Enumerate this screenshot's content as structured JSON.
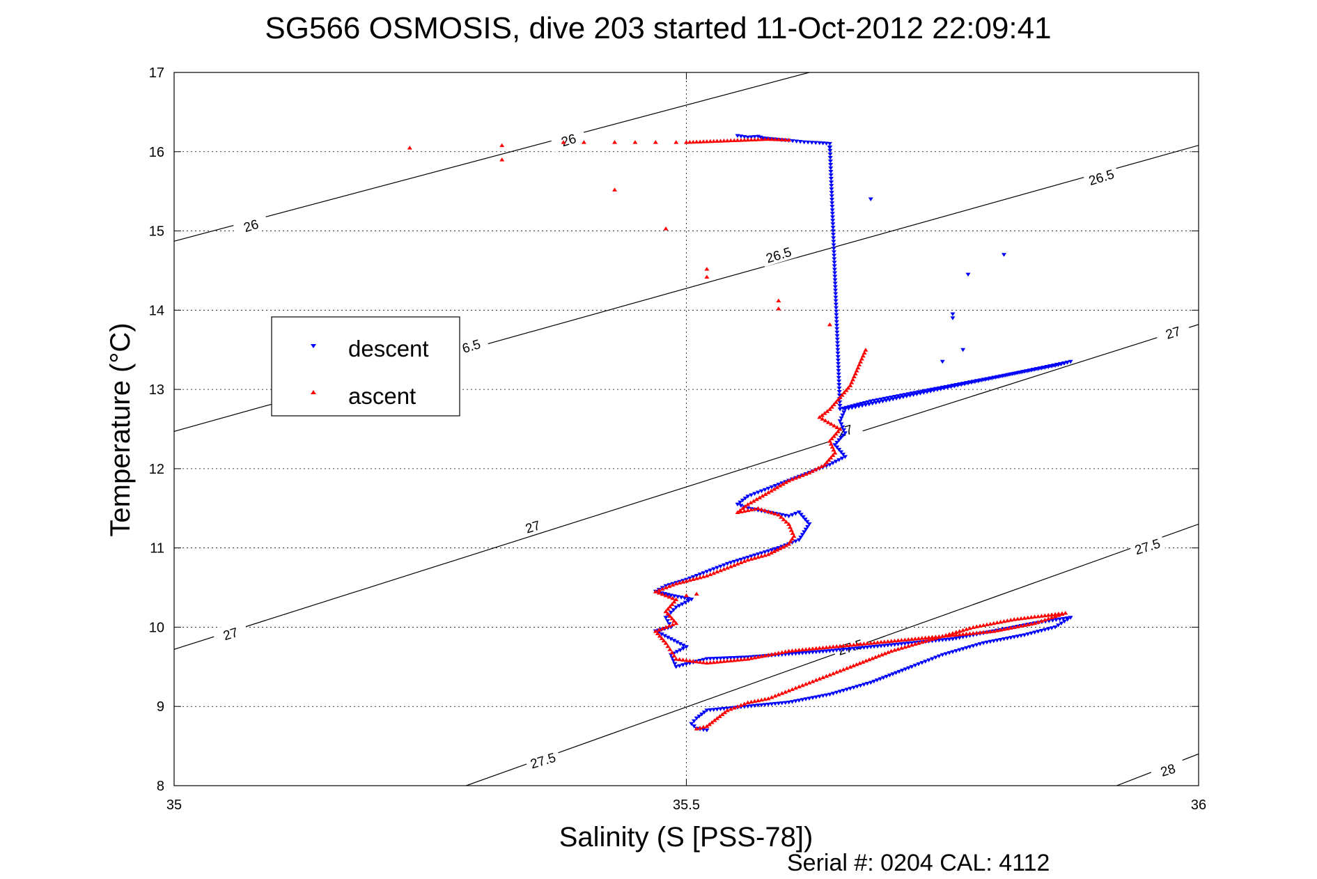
{
  "chart_data": {
    "type": "scatter",
    "title": "SG566 OSMOSIS, dive 203 started 11-Oct-2012 22:09:41",
    "xlabel": "Salinity (S [PSS-78])",
    "ylabel": "Temperature (°C)",
    "xlim": [
      35,
      36
    ],
    "ylim": [
      8,
      17
    ],
    "x_ticks": [
      "35",
      "35.5",
      "36"
    ],
    "y_ticks": [
      "8",
      "9",
      "10",
      "11",
      "12",
      "13",
      "14",
      "15",
      "16",
      "17"
    ],
    "grid": true,
    "legend_position": "left",
    "footer": "Serial #: 0204  CAL: 4112",
    "colors": {
      "descent": "#0000ff",
      "ascent": "#ff0000",
      "contour": "#000000"
    },
    "density_contours": [
      {
        "level": "26",
        "points": [
          [
            35,
            14.87
          ],
          [
            35.62,
            17.0
          ]
        ]
      },
      {
        "level": "26.5",
        "points": [
          [
            35,
            12.47
          ],
          [
            36,
            16.08
          ]
        ]
      },
      {
        "level": "27",
        "points": [
          [
            35,
            9.72
          ],
          [
            36,
            13.82
          ]
        ]
      },
      {
        "level": "27.5",
        "points": [
          [
            35.285,
            8.0
          ],
          [
            36,
            11.3
          ]
        ]
      },
      {
        "level": "28",
        "points": [
          [
            35.92,
            8.0
          ],
          [
            36,
            8.4
          ]
        ]
      }
    ],
    "contour_labels": [
      {
        "text": "26",
        "x": 35.075,
        "y": 15.07
      },
      {
        "text": "26",
        "x": 35.385,
        "y": 16.15
      },
      {
        "text": "26.5",
        "x": 35.59,
        "y": 14.7
      },
      {
        "text": "26.5",
        "x": 35.905,
        "y": 15.68
      },
      {
        "text": "6.5",
        "x": 35.29,
        "y": 13.55
      },
      {
        "text": "27",
        "x": 35.055,
        "y": 9.92
      },
      {
        "text": "27",
        "x": 35.35,
        "y": 11.27
      },
      {
        "text": "27",
        "x": 35.655,
        "y": 12.48
      },
      {
        "text": "27",
        "x": 35.975,
        "y": 13.72
      },
      {
        "text": "27.5",
        "x": 35.36,
        "y": 8.32
      },
      {
        "text": "27.5",
        "x": 35.66,
        "y": 9.75
      },
      {
        "text": "27.5",
        "x": 35.95,
        "y": 11.02
      },
      {
        "text": "28",
        "x": 35.97,
        "y": 8.2
      }
    ],
    "series": [
      {
        "name": "descent",
        "marker": "triangle-down",
        "color": "#0000ff",
        "path": [
          [
            35.55,
            16.2
          ],
          [
            35.56,
            16.18
          ],
          [
            35.57,
            16.19
          ],
          [
            35.575,
            16.17
          ],
          [
            35.6,
            16.14
          ],
          [
            35.615,
            16.12
          ],
          [
            35.63,
            16.11
          ],
          [
            35.64,
            16.1
          ],
          [
            35.65,
            12.75
          ],
          [
            35.665,
            12.8
          ],
          [
            35.68,
            12.85
          ],
          [
            35.7,
            12.9
          ],
          [
            35.72,
            12.95
          ],
          [
            35.74,
            13.0
          ],
          [
            35.76,
            13.05
          ],
          [
            35.78,
            13.1
          ],
          [
            35.8,
            13.15
          ],
          [
            35.82,
            13.2
          ],
          [
            35.84,
            13.25
          ],
          [
            35.86,
            13.3
          ],
          [
            35.875,
            13.35
          ],
          [
            35.655,
            12.75
          ],
          [
            35.65,
            12.6
          ],
          [
            35.655,
            12.45
          ],
          [
            35.645,
            12.3
          ],
          [
            35.655,
            12.15
          ],
          [
            35.64,
            12.05
          ],
          [
            35.62,
            11.95
          ],
          [
            35.6,
            11.85
          ],
          [
            35.58,
            11.75
          ],
          [
            35.56,
            11.65
          ],
          [
            35.55,
            11.55
          ],
          [
            35.56,
            11.5
          ],
          [
            35.58,
            11.45
          ],
          [
            35.6,
            11.4
          ],
          [
            35.61,
            11.45
          ],
          [
            35.62,
            11.3
          ],
          [
            35.615,
            11.2
          ],
          [
            35.61,
            11.1
          ],
          [
            35.59,
            11.0
          ],
          [
            35.57,
            10.92
          ],
          [
            35.54,
            10.8
          ],
          [
            35.52,
            10.7
          ],
          [
            35.5,
            10.6
          ],
          [
            35.48,
            10.52
          ],
          [
            35.47,
            10.45
          ],
          [
            35.485,
            10.4
          ],
          [
            35.505,
            10.35
          ],
          [
            35.49,
            10.25
          ],
          [
            35.48,
            10.12
          ],
          [
            35.485,
            10.0
          ],
          [
            35.47,
            9.95
          ],
          [
            35.485,
            9.85
          ],
          [
            35.5,
            9.75
          ],
          [
            35.485,
            9.65
          ],
          [
            35.49,
            9.5
          ],
          [
            35.52,
            9.6
          ],
          [
            35.56,
            9.62
          ],
          [
            35.6,
            9.66
          ],
          [
            35.64,
            9.7
          ],
          [
            35.68,
            9.75
          ],
          [
            35.72,
            9.8
          ],
          [
            35.76,
            9.85
          ],
          [
            35.8,
            9.95
          ],
          [
            35.84,
            10.05
          ],
          [
            35.875,
            10.12
          ],
          [
            35.86,
            10.0
          ],
          [
            35.83,
            9.9
          ],
          [
            35.79,
            9.8
          ],
          [
            35.75,
            9.65
          ],
          [
            35.72,
            9.5
          ],
          [
            35.68,
            9.3
          ],
          [
            35.64,
            9.15
          ],
          [
            35.6,
            9.05
          ],
          [
            35.52,
            8.95
          ],
          [
            35.51,
            8.85
          ],
          [
            35.505,
            8.78
          ],
          [
            35.51,
            8.72
          ],
          [
            35.52,
            8.7
          ]
        ],
        "outliers": [
          [
            35.68,
            15.4
          ],
          [
            35.64,
            16.05
          ],
          [
            35.81,
            14.7
          ],
          [
            35.775,
            14.45
          ],
          [
            35.76,
            13.95
          ],
          [
            35.77,
            13.5
          ],
          [
            35.75,
            13.35
          ],
          [
            35.76,
            13.9
          ]
        ]
      },
      {
        "name": "ascent",
        "marker": "triangle-up",
        "color": "#ff0000",
        "path": [
          [
            35.51,
            8.72
          ],
          [
            35.52,
            8.75
          ],
          [
            35.53,
            8.85
          ],
          [
            35.54,
            8.95
          ],
          [
            35.56,
            9.05
          ],
          [
            35.58,
            9.1
          ],
          [
            35.6,
            9.2
          ],
          [
            35.63,
            9.35
          ],
          [
            35.66,
            9.5
          ],
          [
            35.7,
            9.7
          ],
          [
            35.74,
            9.85
          ],
          [
            35.78,
            10.0
          ],
          [
            35.82,
            10.1
          ],
          [
            35.87,
            10.18
          ],
          [
            35.84,
            10.05
          ],
          [
            35.8,
            9.95
          ],
          [
            35.76,
            9.9
          ],
          [
            35.72,
            9.85
          ],
          [
            35.68,
            9.8
          ],
          [
            35.64,
            9.75
          ],
          [
            35.6,
            9.7
          ],
          [
            35.56,
            9.6
          ],
          [
            35.52,
            9.55
          ],
          [
            35.49,
            9.6
          ],
          [
            35.48,
            9.8
          ],
          [
            35.47,
            9.95
          ],
          [
            35.49,
            10.05
          ],
          [
            35.48,
            10.2
          ],
          [
            35.49,
            10.35
          ],
          [
            35.47,
            10.45
          ],
          [
            35.49,
            10.55
          ],
          [
            35.52,
            10.65
          ],
          [
            35.54,
            10.75
          ],
          [
            35.56,
            10.85
          ],
          [
            35.58,
            10.92
          ],
          [
            35.6,
            11.05
          ],
          [
            35.605,
            11.15
          ],
          [
            35.6,
            11.3
          ],
          [
            35.59,
            11.42
          ],
          [
            35.57,
            11.5
          ],
          [
            35.55,
            11.45
          ],
          [
            35.56,
            11.55
          ],
          [
            35.58,
            11.7
          ],
          [
            35.6,
            11.85
          ],
          [
            35.62,
            11.95
          ],
          [
            35.635,
            12.05
          ],
          [
            35.645,
            12.2
          ],
          [
            35.64,
            12.35
          ],
          [
            35.65,
            12.5
          ],
          [
            35.63,
            12.65
          ],
          [
            35.64,
            12.75
          ],
          [
            35.65,
            12.9
          ],
          [
            35.66,
            13.05
          ],
          [
            35.665,
            13.2
          ],
          [
            35.67,
            13.35
          ],
          [
            35.675,
            13.5
          ]
        ],
        "surface": [
          [
            35.5,
            16.12
          ],
          [
            35.52,
            16.13
          ],
          [
            35.54,
            16.14
          ],
          [
            35.56,
            16.15
          ],
          [
            35.58,
            16.16
          ],
          [
            35.6,
            16.15
          ]
        ],
        "outliers": [
          [
            35.23,
            16.05
          ],
          [
            35.32,
            16.08
          ],
          [
            35.32,
            15.9
          ],
          [
            35.38,
            16.12
          ],
          [
            35.4,
            16.12
          ],
          [
            35.43,
            16.12
          ],
          [
            35.45,
            16.12
          ],
          [
            35.47,
            16.12
          ],
          [
            35.49,
            16.12
          ],
          [
            35.43,
            15.52
          ],
          [
            35.48,
            15.03
          ],
          [
            35.52,
            14.52
          ],
          [
            35.52,
            14.42
          ],
          [
            35.59,
            14.12
          ],
          [
            35.59,
            14.02
          ],
          [
            35.64,
            13.82
          ],
          [
            35.5,
            10.4
          ],
          [
            35.51,
            10.42
          ]
        ]
      }
    ]
  }
}
